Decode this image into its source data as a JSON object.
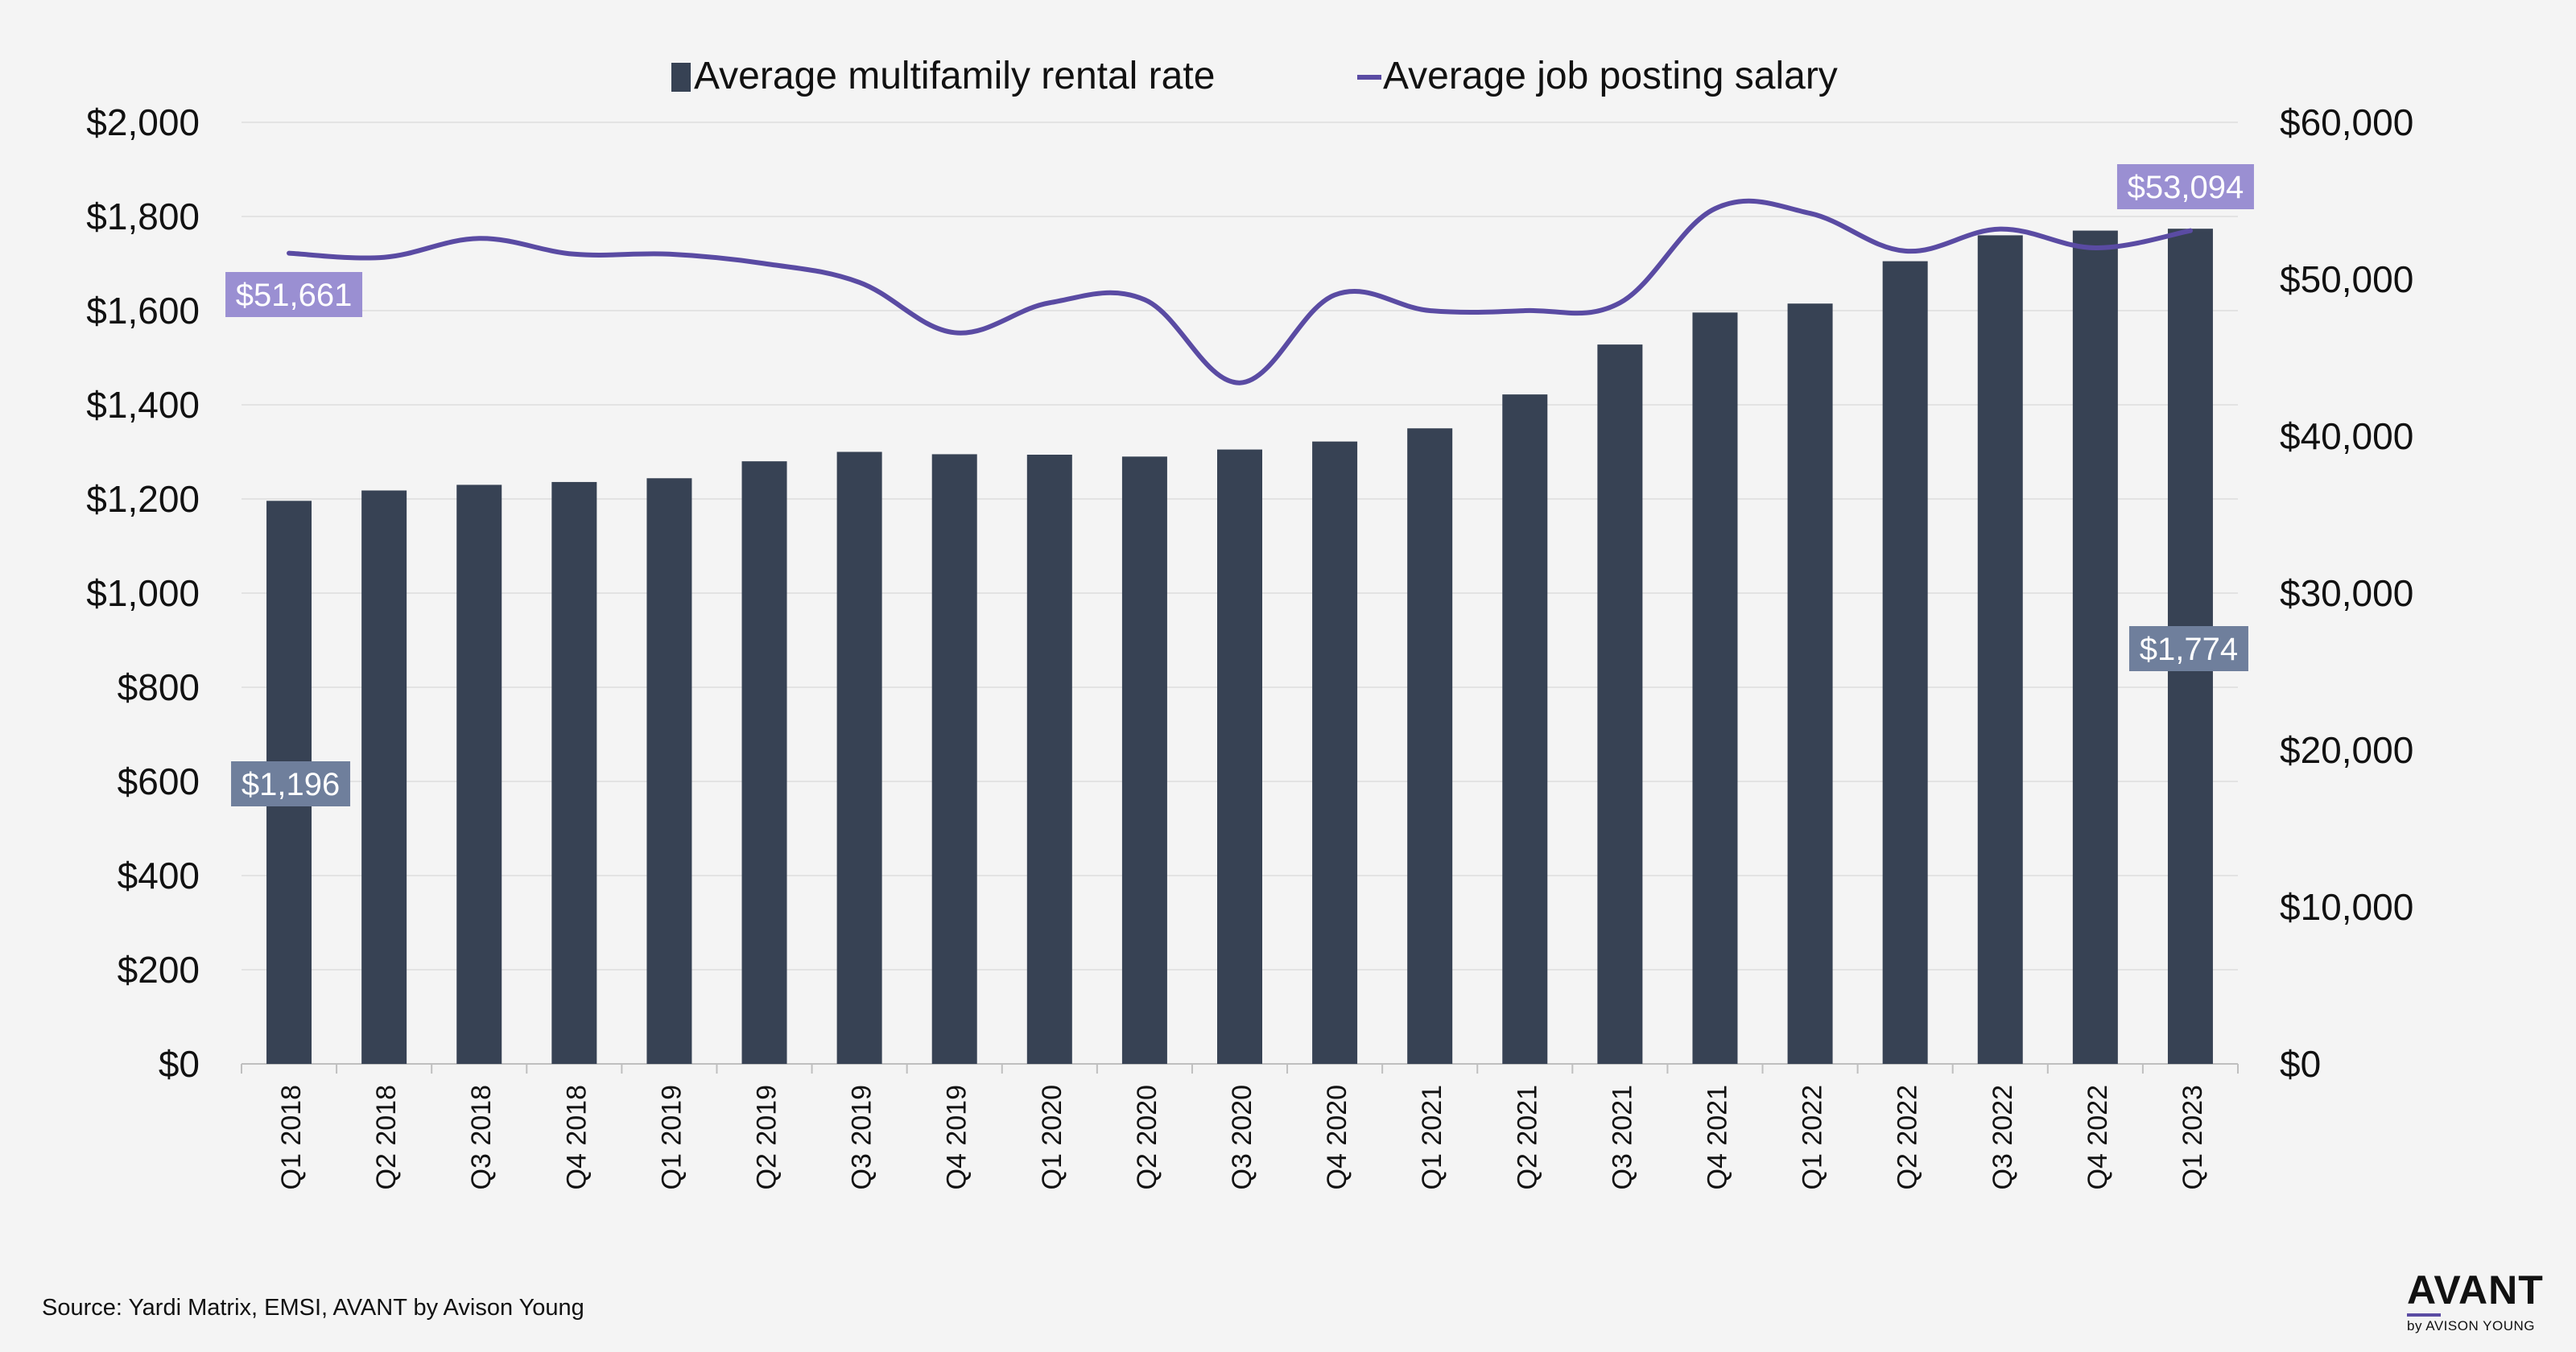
{
  "chart_data": {
    "type": "bar",
    "categories": [
      "Q1 2018",
      "Q2 2018",
      "Q3 2018",
      "Q4 2018",
      "Q1 2019",
      "Q2 2019",
      "Q3 2019",
      "Q4 2019",
      "Q1 2020",
      "Q2 2020",
      "Q3 2020",
      "Q4 2020",
      "Q1 2021",
      "Q2 2021",
      "Q3 2021",
      "Q4 2021",
      "Q1 2022",
      "Q2 2022",
      "Q3 2022",
      "Q4 2022",
      "Q1 2023"
    ],
    "series": [
      {
        "name": "Average multifamily rental rate",
        "type": "bar",
        "axis": "left",
        "color": "#374254",
        "values": [
          1196,
          1218,
          1230,
          1236,
          1244,
          1280,
          1300,
          1295,
          1294,
          1290,
          1305,
          1322,
          1350,
          1422,
          1528,
          1596,
          1615,
          1705,
          1760,
          1770,
          1774
        ]
      },
      {
        "name": "Average job posting salary",
        "type": "line",
        "axis": "right",
        "color": "#5a4ba3",
        "values": [
          51661,
          51400,
          52600,
          51600,
          51600,
          51000,
          49800,
          46600,
          48500,
          48700,
          43400,
          49000,
          48000,
          48000,
          48500,
          54500,
          54200,
          51800,
          53200,
          52000,
          53094
        ]
      }
    ],
    "y_left": {
      "range": [
        0,
        2000
      ],
      "ticks": [
        "$0",
        "$200",
        "$400",
        "$600",
        "$800",
        "$1,000",
        "$1,200",
        "$1,400",
        "$1,600",
        "$1,800",
        "$2,000"
      ]
    },
    "y_right": {
      "range": [
        0,
        60000
      ],
      "ticks": [
        "$0",
        "$10,000",
        "$20,000",
        "$30,000",
        "$40,000",
        "$50,000",
        "$60,000"
      ]
    },
    "data_labels": {
      "bar_first": "$1,196",
      "bar_last": "$1,774",
      "line_first": "$51,661",
      "line_last": "$53,094"
    },
    "colors": {
      "bar_label_bg": "#6f7f9c",
      "line_label_bg": "#9a8fd2",
      "gridline": "#dddddd"
    },
    "legend": {
      "position": "top"
    },
    "grid": true
  },
  "source": "Source: Yardi Matrix, EMSI, AVANT by Avison Young",
  "logo": {
    "word": "AVANT",
    "sub": "by AVISON YOUNG"
  }
}
